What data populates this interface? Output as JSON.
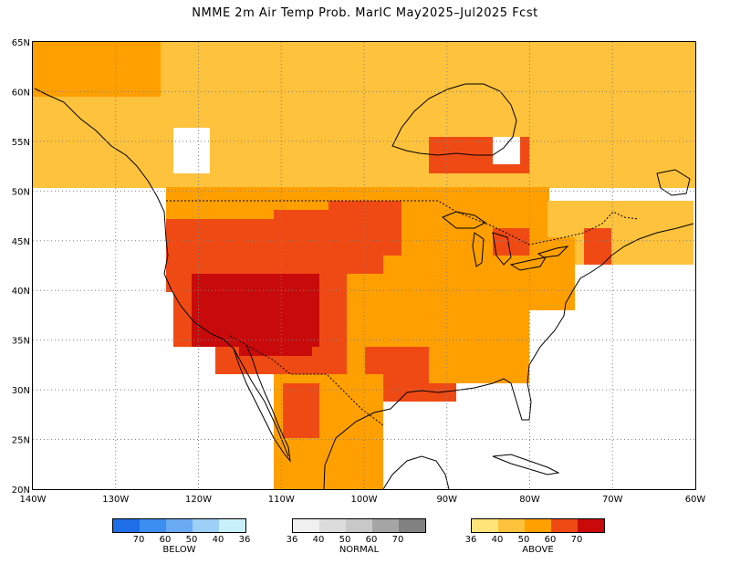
{
  "title": "NMME 2m Air Temp Prob. MarIC  May2025–Jul2025 Fcst",
  "map": {
    "lon_range": [
      -140,
      -60
    ],
    "lat_range": [
      20,
      65
    ],
    "lon_ticks": [
      "140W",
      "130W",
      "120W",
      "110W",
      "100W",
      "90W",
      "80W",
      "70W",
      "60W"
    ],
    "lat_ticks": [
      "20N",
      "25N",
      "30N",
      "35N",
      "40N",
      "45N",
      "50N",
      "55N",
      "60N",
      "65N"
    ],
    "gridlines": "dotted"
  },
  "legend": {
    "below": {
      "caption": "BELOW",
      "labels": [
        "70",
        "60",
        "50",
        "40",
        "36"
      ],
      "colors": [
        "#1e6fe6",
        "#3c8ef0",
        "#6aaaf2",
        "#9cd0f6",
        "#c8f0fa"
      ]
    },
    "normal": {
      "caption": "NORMAL",
      "labels": [
        "36",
        "40",
        "50",
        "60",
        "70"
      ],
      "colors": [
        "#f0f0f0",
        "#dcdcdc",
        "#c8c8c8",
        "#a5a5a5",
        "#828282"
      ]
    },
    "above": {
      "caption": "ABOVE",
      "labels": [
        "36",
        "40",
        "50",
        "60",
        "70"
      ],
      "colors": [
        "#ffe57a",
        "#ffc23c",
        "#ffa000",
        "#f04a14",
        "#c80a0a"
      ]
    }
  }
}
